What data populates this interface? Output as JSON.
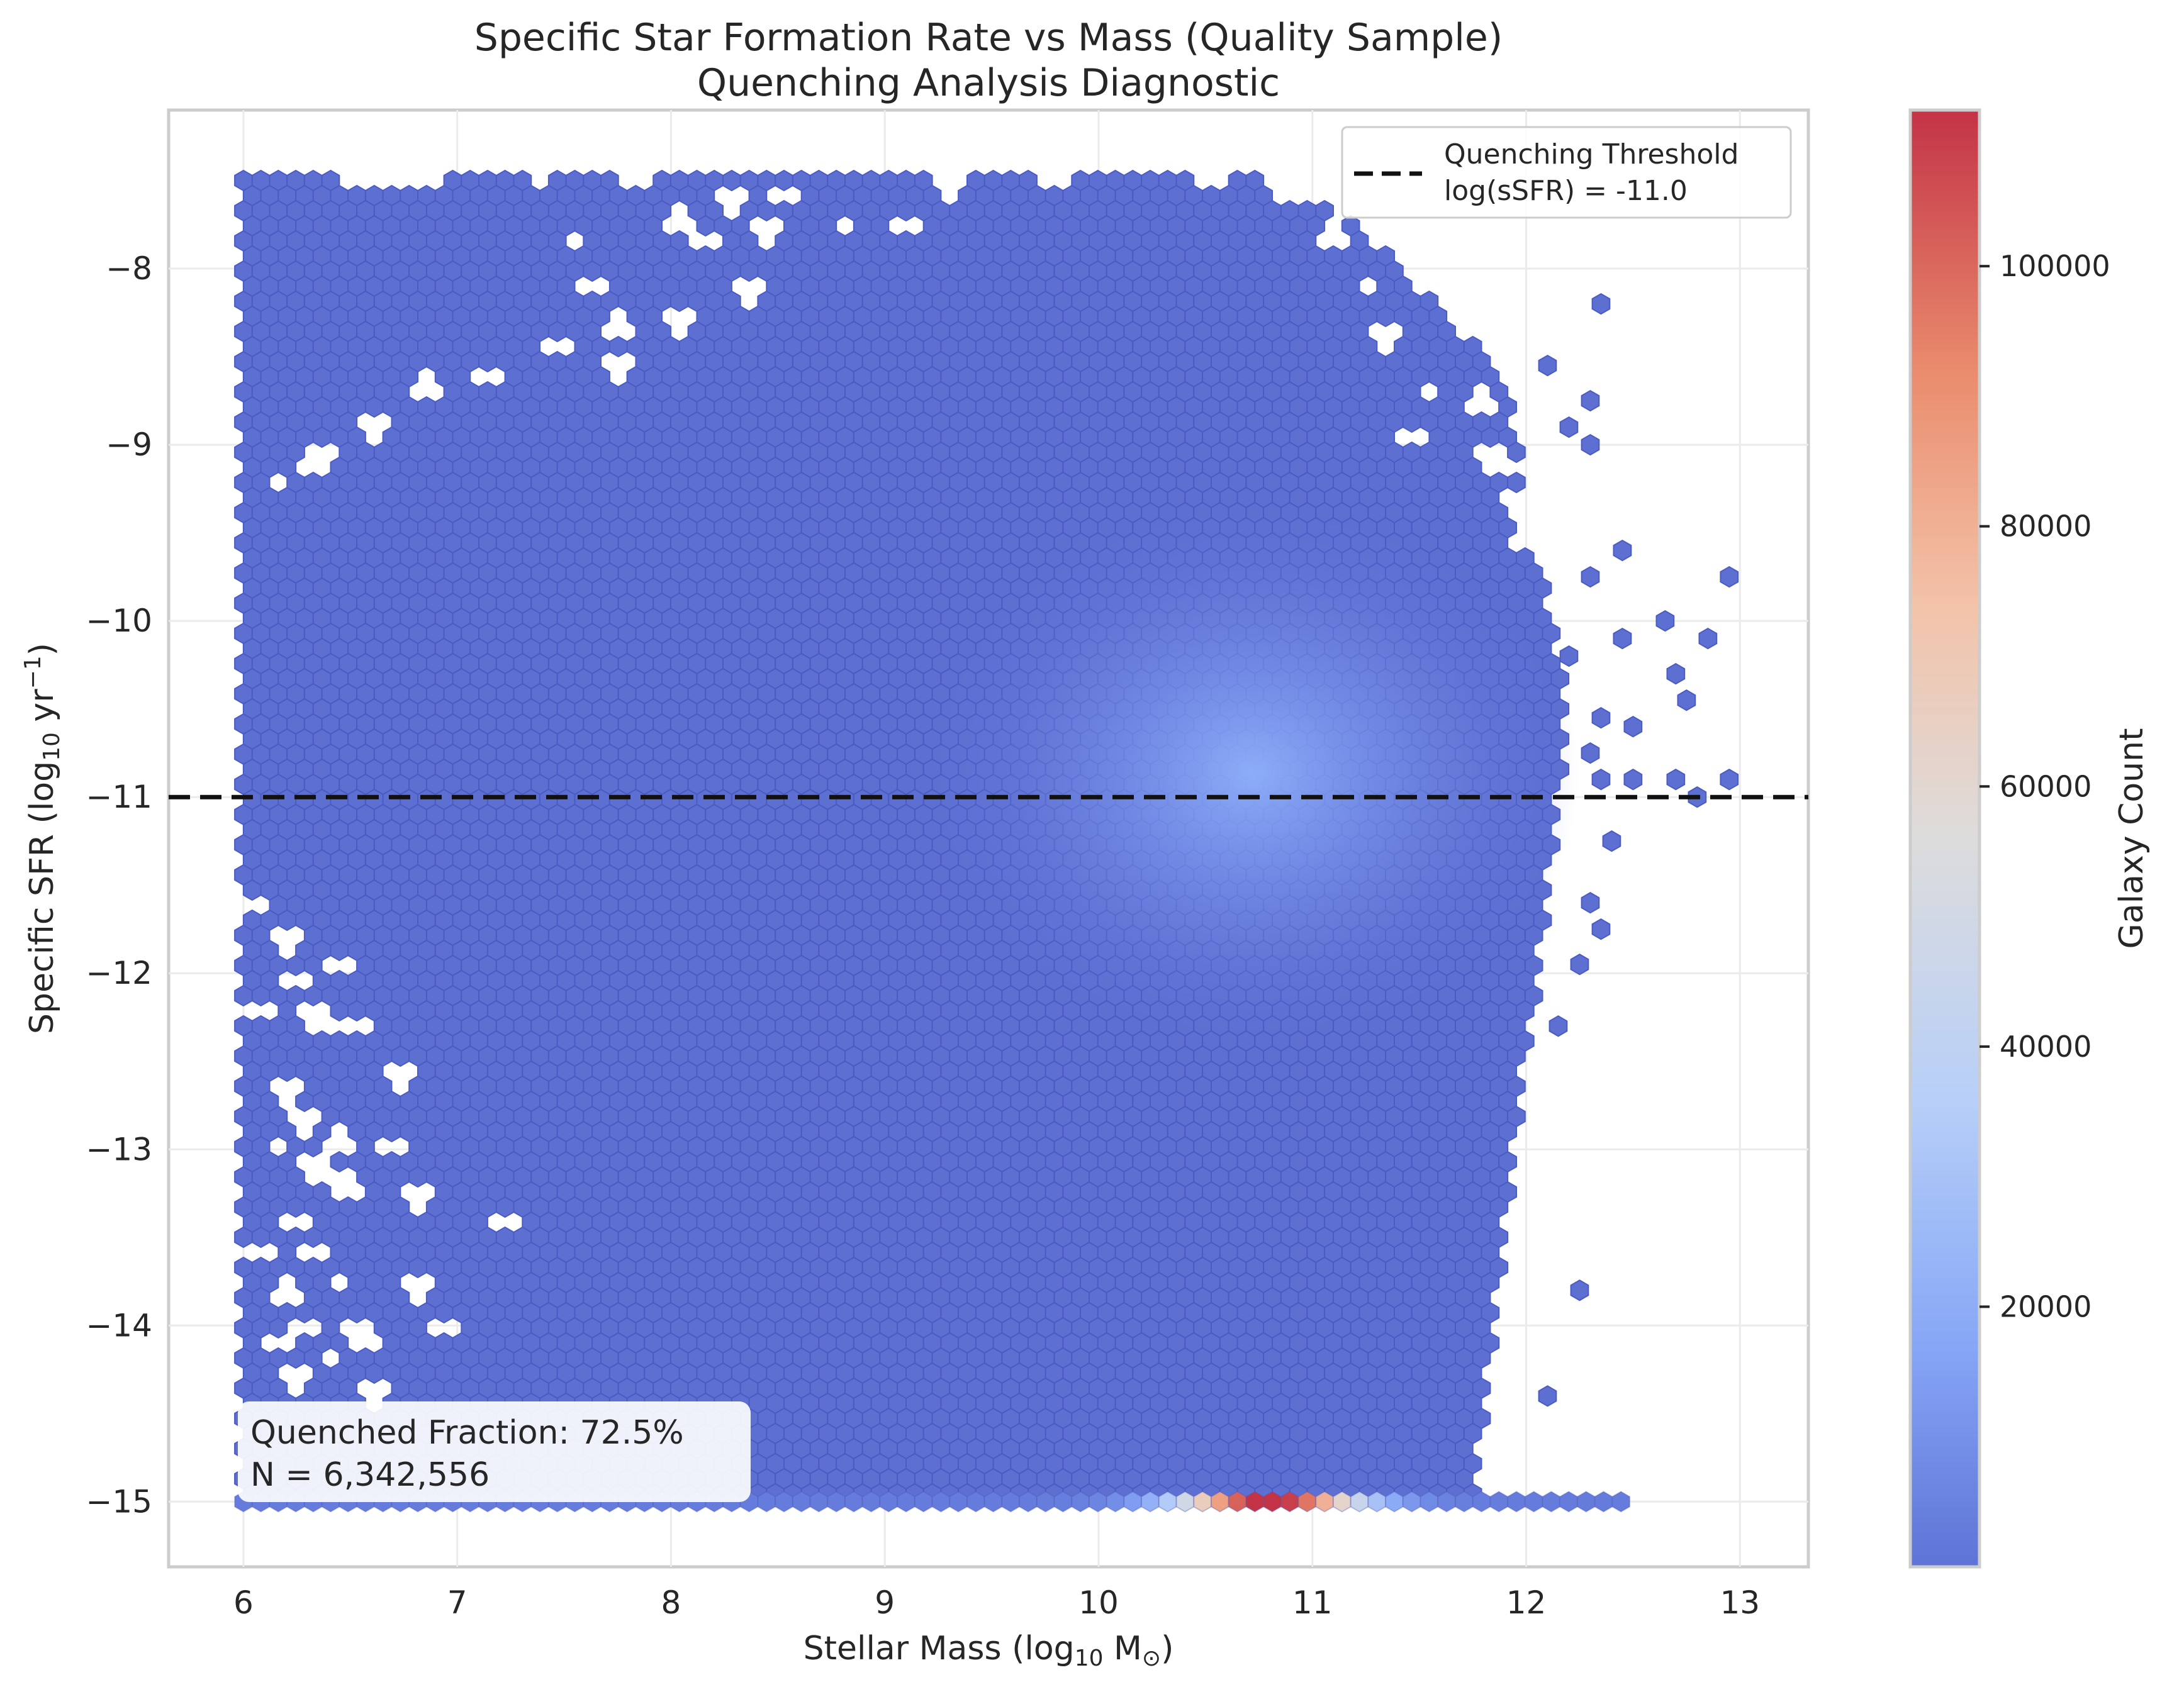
{
  "chart_data": {
    "type": "hexbin",
    "title_line1": "Specific Star Formation Rate vs Mass (Quality Sample)",
    "title_line2": "Quenching Analysis Diagnostic",
    "xlabel_main": "Stellar Mass (log",
    "xlabel_sub": "10",
    "xlabel_tail": " M",
    "xlabel_sun": "⊙",
    "xlabel_close": ")",
    "ylabel_main": "Specific SFR (log",
    "ylabel_sub": "10",
    "ylabel_tail": " yr",
    "ylabel_sup": "−1",
    "ylabel_close": ")",
    "xlim": [
      5.65,
      13.32
    ],
    "ylim": [
      -15.37,
      -7.1
    ],
    "xticks": [
      6,
      7,
      8,
      9,
      10,
      11,
      12,
      13
    ],
    "xtick_labels": [
      "6",
      "7",
      "8",
      "9",
      "10",
      "11",
      "12",
      "13"
    ],
    "yticks": [
      -8,
      -9,
      -10,
      -11,
      -12,
      -13,
      -14,
      -15
    ],
    "ytick_labels": [
      "−8",
      "−9",
      "−10",
      "−11",
      "−12",
      "−13",
      "−14",
      "−15"
    ],
    "grid": true,
    "colormap": "coolwarm",
    "colorbar": {
      "label": "Galaxy Count",
      "range": [
        0,
        112000
      ],
      "ticks": [
        20000,
        40000,
        60000,
        80000,
        100000
      ],
      "tick_labels": [
        "20000",
        "40000",
        "60000",
        "80000",
        "100000"
      ]
    },
    "threshold_line": {
      "y": -11.0,
      "style": "dashed",
      "color": "#000000"
    },
    "legend": {
      "placement": "top-right",
      "label_line1": "Quenching Threshold",
      "label_line2": "log(sSFR) = -11.0"
    },
    "annotation": {
      "placement": "bottom-left",
      "line1": "Quenched Fraction: 72.5%",
      "line2": "N = 6,342,556"
    },
    "density": {
      "bulk_x_range": [
        6.0,
        12.0
      ],
      "bulk_y_range": [
        -15.0,
        -7.5
      ],
      "peak_center": {
        "x": 10.9,
        "y": -11.1
      },
      "peak_count_approx": 25000,
      "floor_row_y": -15.0,
      "floor_row_peak": {
        "x": 10.8,
        "count": 112000
      }
    },
    "outlier_bins": [
      [
        12.95,
        -9.75
      ],
      [
        12.65,
        -10.0
      ],
      [
        12.85,
        -10.1
      ],
      [
        12.7,
        -10.3
      ],
      [
        12.75,
        -10.45
      ],
      [
        12.45,
        -9.6
      ],
      [
        12.45,
        -10.1
      ],
      [
        12.35,
        -10.55
      ],
      [
        12.5,
        -10.6
      ],
      [
        12.3,
        -10.75
      ],
      [
        12.35,
        -10.9
      ],
      [
        12.5,
        -10.9
      ],
      [
        12.7,
        -10.9
      ],
      [
        12.95,
        -10.9
      ],
      [
        12.8,
        -11.0
      ],
      [
        12.4,
        -11.25
      ],
      [
        12.3,
        -11.6
      ],
      [
        12.35,
        -11.75
      ],
      [
        12.25,
        -11.95
      ],
      [
        12.15,
        -12.3
      ],
      [
        12.25,
        -13.8
      ],
      [
        12.1,
        -14.4
      ],
      [
        12.35,
        -8.2
      ],
      [
        12.1,
        -8.55
      ],
      [
        12.3,
        -8.75
      ],
      [
        12.2,
        -8.9
      ],
      [
        12.3,
        -9.0
      ],
      [
        12.3,
        -9.75
      ],
      [
        12.2,
        -10.2
      ]
    ],
    "lowmass_gaps": [
      [
        6.05,
        -11.6
      ],
      [
        6.2,
        -11.85
      ],
      [
        6.25,
        -12.05
      ],
      [
        6.1,
        -12.2
      ],
      [
        6.35,
        -12.25
      ],
      [
        6.2,
        -12.7
      ],
      [
        6.3,
        -12.85
      ],
      [
        6.15,
        -13.0
      ],
      [
        6.35,
        -13.1
      ],
      [
        6.45,
        -12.95
      ],
      [
        6.5,
        -13.2
      ],
      [
        6.25,
        -13.4
      ],
      [
        6.1,
        -13.6
      ],
      [
        6.35,
        -13.6
      ],
      [
        6.2,
        -13.8
      ],
      [
        6.45,
        -13.75
      ],
      [
        6.3,
        -14.0
      ],
      [
        6.15,
        -14.1
      ],
      [
        6.4,
        -14.2
      ],
      [
        6.55,
        -14.05
      ],
      [
        6.25,
        -14.3
      ],
      [
        6.45,
        -11.95
      ],
      [
        6.55,
        -12.3
      ],
      [
        6.75,
        -12.6
      ],
      [
        6.7,
        -13.0
      ],
      [
        6.8,
        -13.3
      ],
      [
        7.2,
        -13.4
      ],
      [
        6.8,
        -13.8
      ],
      [
        6.6,
        -14.4
      ],
      [
        6.95,
        -14.0
      ]
    ],
    "top_gaps": [
      [
        6.55,
        -7.5
      ],
      [
        6.7,
        -7.5
      ],
      [
        6.85,
        -7.5
      ],
      [
        7.4,
        -7.5
      ],
      [
        7.85,
        -7.5
      ],
      [
        8.05,
        -7.7
      ],
      [
        8.15,
        -7.85
      ],
      [
        8.3,
        -7.65
      ],
      [
        8.45,
        -7.8
      ],
      [
        8.55,
        -7.6
      ],
      [
        8.8,
        -7.75
      ],
      [
        9.1,
        -7.75
      ],
      [
        9.3,
        -7.55
      ],
      [
        9.8,
        -7.5
      ],
      [
        10.55,
        -7.5
      ],
      [
        10.85,
        -7.5
      ],
      [
        7.55,
        -7.85
      ],
      [
        7.65,
        -8.1
      ],
      [
        7.75,
        -8.3
      ],
      [
        8.05,
        -8.3
      ],
      [
        8.35,
        -8.15
      ],
      [
        6.85,
        -8.65
      ],
      [
        7.15,
        -8.6
      ],
      [
        7.45,
        -8.45
      ],
      [
        7.75,
        -8.55
      ],
      [
        6.6,
        -8.9
      ],
      [
        6.35,
        -9.1
      ],
      [
        6.15,
        -9.2
      ],
      [
        11.1,
        -7.8
      ],
      [
        11.25,
        -8.1
      ],
      [
        11.35,
        -8.4
      ],
      [
        11.55,
        -8.7
      ],
      [
        11.8,
        -8.75
      ],
      [
        11.45,
        -8.95
      ],
      [
        11.85,
        -9.1
      ],
      [
        11.95,
        -9.35
      ],
      [
        12.0,
        -9.5
      ]
    ]
  }
}
